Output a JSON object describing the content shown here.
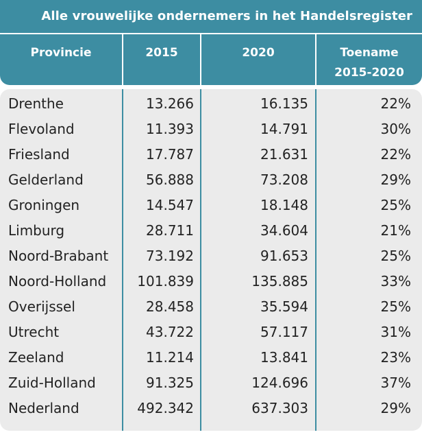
{
  "table": {
    "title": "Alle vrouwelijke ondernemers in het Handelsregister",
    "headers": {
      "provincie": "Provincie",
      "y2015": "2015",
      "y2020": "2020",
      "toename_line1": "Toename",
      "toename_line2": "2015-2020"
    },
    "rows": [
      {
        "provincie": "Drenthe",
        "y2015": "13.266",
        "y2020": "16.135",
        "toename": "22%"
      },
      {
        "provincie": "Flevoland",
        "y2015": "11.393",
        "y2020": "14.791",
        "toename": "30%"
      },
      {
        "provincie": "Friesland",
        "y2015": "17.787",
        "y2020": "21.631",
        "toename": "22%"
      },
      {
        "provincie": "Gelderland",
        "y2015": "56.888",
        "y2020": "73.208",
        "toename": "29%"
      },
      {
        "provincie": "Groningen",
        "y2015": "14.547",
        "y2020": "18.148",
        "toename": "25%"
      },
      {
        "provincie": "Limburg",
        "y2015": "28.711",
        "y2020": "34.604",
        "toename": "21%"
      },
      {
        "provincie": "Noord-Brabant",
        "y2015": "73.192",
        "y2020": "91.653",
        "toename": "25%"
      },
      {
        "provincie": "Noord-Holland",
        "y2015": "101.839",
        "y2020": "135.885",
        "toename": "33%"
      },
      {
        "provincie": "Overijssel",
        "y2015": "28.458",
        "y2020": "35.594",
        "toename": "25%"
      },
      {
        "provincie": "Utrecht",
        "y2015": "43.722",
        "y2020": "57.117",
        "toename": "31%"
      },
      {
        "provincie": "Zeeland",
        "y2015": "11.214",
        "y2020": "13.841",
        "toename": "23%"
      },
      {
        "provincie": "Zuid-Holland",
        "y2015": "91.325",
        "y2020": "124.696",
        "toename": "37%"
      },
      {
        "provincie": "Nederland",
        "y2015": "492.342",
        "y2020": "637.303",
        "toename": "29%"
      }
    ]
  },
  "colors": {
    "header_bg": "#3d8da2",
    "body_bg": "#ebebeb",
    "text": "#222222"
  }
}
